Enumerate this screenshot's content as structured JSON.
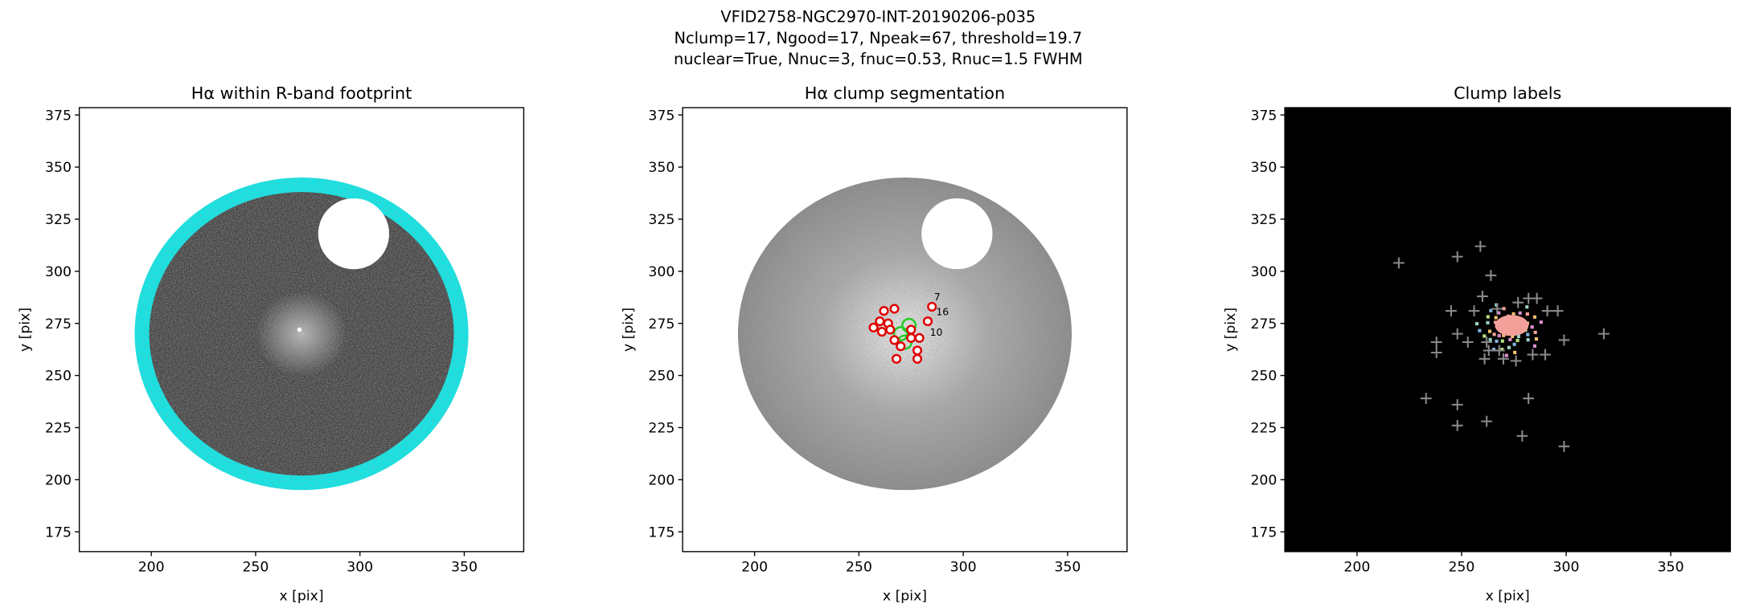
{
  "title_lines": [
    "VFID2758-NGC2970-INT-20190206-p035",
    "Nclump=17, Ngood=17, Npeak=67, threshold=19.7",
    "nuclear=True, Nnuc=3, fnuc=0.53, Rnuc=1.5 FWHM"
  ],
  "chart_data": [
    {
      "type": "image",
      "title": "Hα within R-band footprint",
      "xlabel": "x [pix]",
      "ylabel": "y [pix]",
      "xlim": [
        165.5,
        378.5
      ],
      "ylim": [
        165.5,
        378.5
      ],
      "xticks": [
        200,
        250,
        300,
        350
      ],
      "yticks": [
        175,
        200,
        225,
        250,
        275,
        300,
        325,
        350,
        375
      ]
    },
    {
      "type": "scatter",
      "title": "Hα clump segmentation",
      "xlabel": "x [pix]",
      "ylabel": "y [pix]",
      "xlim": [
        165.5,
        378.5
      ],
      "ylim": [
        165.5,
        378.5
      ],
      "xticks": [
        200,
        250,
        300,
        350
      ],
      "yticks": [
        175,
        200,
        225,
        250,
        275,
        300,
        325,
        350,
        375
      ],
      "series": [
        {
          "color": "#22cc22",
          "marker": "circle",
          "x": [
            274,
            272,
            270
          ],
          "y": [
            274,
            266,
            270
          ]
        },
        {
          "color": "#e00000",
          "marker": "circle",
          "x": [
            257,
            260,
            262,
            267,
            264,
            265,
            261,
            267,
            270,
            275,
            275,
            279,
            278,
            283,
            285,
            278,
            268
          ],
          "y": [
            273,
            276,
            281,
            282,
            275,
            272,
            271,
            267,
            264,
            268,
            272,
            268,
            262,
            276,
            283,
            258,
            258
          ]
        }
      ],
      "annotations": [
        {
          "text": "7",
          "x": 286,
          "y": 286,
          "color": "#e00000"
        },
        {
          "text": "16",
          "x": 287,
          "y": 279,
          "color": "#e00000"
        },
        {
          "text": "10",
          "x": 284,
          "y": 269,
          "color": "#e00000"
        }
      ]
    },
    {
      "type": "scatter",
      "title": "Clump labels",
      "xlabel": "x [pix]",
      "ylabel": "y [pix]",
      "xlim": [
        165.5,
        378.5
      ],
      "ylim": [
        165.5,
        378.5
      ],
      "xticks": [
        200,
        250,
        300,
        350
      ],
      "yticks": [
        175,
        200,
        225,
        250,
        275,
        300,
        325,
        350,
        375
      ],
      "series": [
        {
          "color": "#888888",
          "marker": "plus",
          "x": [
            220,
            248,
            259,
            264,
            245,
            256,
            260,
            267,
            248,
            253,
            238,
            238,
            262,
            286,
            291,
            282,
            296,
            299,
            318,
            277,
            268,
            263,
            270,
            276,
            284,
            290,
            261,
            233,
            248,
            248,
            262,
            279,
            282,
            299
          ],
          "y": [
            304,
            307,
            312,
            298,
            281,
            281,
            288,
            282,
            270,
            266,
            266,
            261,
            266,
            287,
            281,
            287,
            281,
            267,
            270,
            285,
            262,
            262,
            258,
            257,
            260,
            260,
            258,
            239,
            236,
            226,
            228,
            221,
            239,
            216
          ]
        }
      ]
    }
  ]
}
